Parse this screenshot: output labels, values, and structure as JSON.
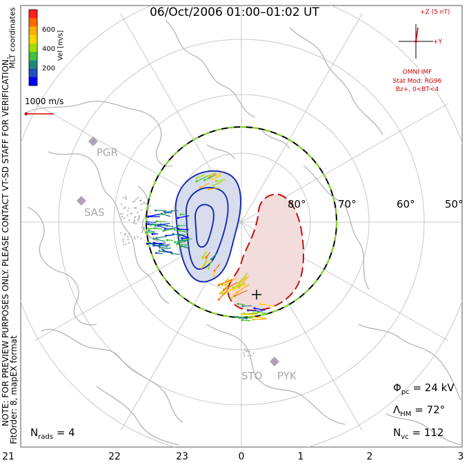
{
  "header": {
    "title": "06/Oct/2006 01:00–01:02 UT"
  },
  "colorbar": {
    "label": "Vel [m/s]",
    "ticks": [
      "600",
      "400",
      "200"
    ],
    "colors": [
      "#ff2020",
      "#ff6a00",
      "#ffb000",
      "#ffd400",
      "#a0e000",
      "#40c040",
      "#208878",
      "#2050c0",
      "#0000ff"
    ]
  },
  "coords_label": "MLT coordinates",
  "vector_scale": {
    "label": "1000 m/s",
    "color": "#d00000"
  },
  "side_note": {
    "line1": "NOTE: FOR PREVIEW PURPOSES ONLY. PLEASE CONTACT VT-SD STAFF FOR VERIFICATION.",
    "line2": "FitOrder: 8, mapEX format"
  },
  "imf": {
    "plus_z": "+Z (5 nT)",
    "plus_y": "+Y",
    "source": "OMNI IMF",
    "model": "Stat Mod: RG96",
    "condition": "Bz+, 0<BT<4",
    "color": "#d00000"
  },
  "stations": [
    "PGR",
    "SAS",
    "STO",
    "PYK"
  ],
  "lat_labels": [
    "80°",
    "70°",
    "60°",
    "50°"
  ],
  "mlt_labels": [
    "21",
    "22",
    "23",
    "0",
    "1",
    "2",
    "3"
  ],
  "stats": {
    "phi_pc_symbol": "Φ",
    "phi_pc_sub": "pc",
    "phi_pc_value": "= 24 kV",
    "lambda_hm_symbol": "Λ",
    "lambda_hm_sub": "HM",
    "lambda_hm_value": "= 72°",
    "n_vc_symbol": "N",
    "n_vc_sub": "vc",
    "n_vc_value": "= 112",
    "n_rads_symbol": "N",
    "n_rads_sub": "rads",
    "n_rads_value": "= 4"
  },
  "colors": {
    "negative_cell_fill": "#d8ddee",
    "negative_cell_line": "#1a2fb0",
    "positive_cell_fill": "#f3dcdc",
    "positive_cell_line": "#c01010",
    "grid": "#c8c8c8",
    "coast": "#b8b8b8"
  }
}
